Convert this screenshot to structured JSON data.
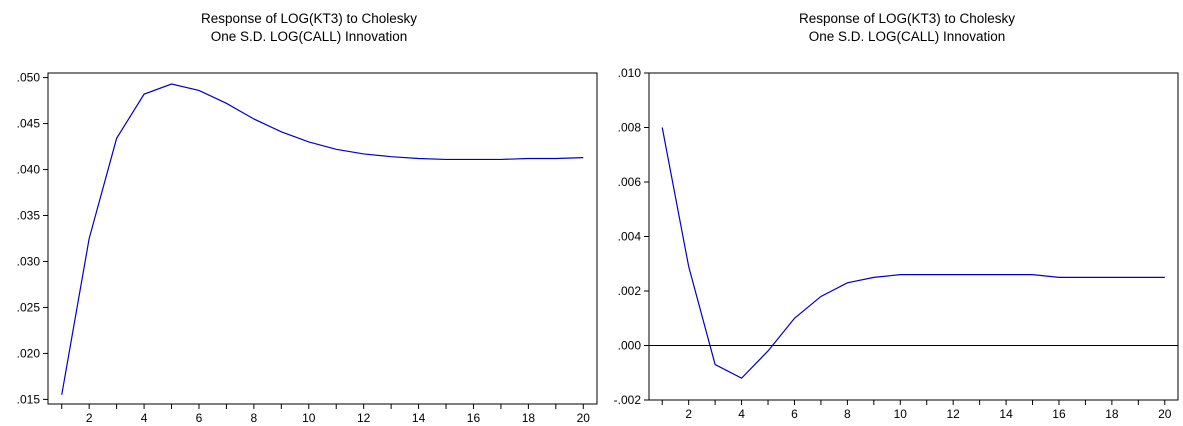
{
  "chart_data": [
    {
      "type": "line",
      "title": "Response of LOG(KT3) to Cholesky",
      "subtitle": "One S.D. LOG(CALL) Innovation",
      "x": [
        1,
        2,
        3,
        4,
        5,
        6,
        7,
        8,
        9,
        10,
        11,
        12,
        13,
        14,
        15,
        16,
        17,
        18,
        19,
        20
      ],
      "series": [
        {
          "values": [
            0.0155,
            0.0325,
            0.0434,
            0.0482,
            0.0493,
            0.0486,
            0.0472,
            0.0455,
            0.0441,
            0.043,
            0.0422,
            0.0417,
            0.0414,
            0.0412,
            0.0411,
            0.0411,
            0.0411,
            0.0412,
            0.0412,
            0.0413
          ],
          "color": "#0000cc"
        }
      ],
      "xlim": [
        0.5,
        20.5
      ],
      "ylim": [
        0.0145,
        0.0505
      ],
      "x_ticks": [
        2,
        4,
        6,
        8,
        10,
        12,
        14,
        16,
        18,
        20
      ],
      "y_ticks": [
        0.015,
        0.02,
        0.025,
        0.03,
        0.035,
        0.04,
        0.045,
        0.05
      ],
      "y_tick_labels": [
        ".015",
        ".020",
        ".025",
        ".030",
        ".035",
        ".040",
        ".045",
        ".050"
      ],
      "zero_line": false,
      "grid": false,
      "xlabel": "",
      "ylabel": ""
    },
    {
      "type": "line",
      "title": "Response of LOG(KT3) to Cholesky",
      "subtitle": "One S.D. LOG(CALL) Innovation",
      "x": [
        1,
        2,
        3,
        4,
        5,
        6,
        7,
        8,
        9,
        10,
        11,
        12,
        13,
        14,
        15,
        16,
        17,
        18,
        19,
        20
      ],
      "series": [
        {
          "values": [
            0.008,
            0.0029,
            -0.0007,
            -0.0012,
            -0.0002,
            0.001,
            0.0018,
            0.0023,
            0.0025,
            0.0026,
            0.0026,
            0.0026,
            0.0026,
            0.0026,
            0.0026,
            0.0025,
            0.0025,
            0.0025,
            0.0025,
            0.0025
          ],
          "color": "#0000cc"
        }
      ],
      "xlim": [
        0.5,
        20.5
      ],
      "ylim": [
        -0.002,
        0.01
      ],
      "x_ticks": [
        2,
        4,
        6,
        8,
        10,
        12,
        14,
        16,
        18,
        20
      ],
      "y_ticks": [
        -0.002,
        0.0,
        0.002,
        0.004,
        0.006,
        0.008,
        0.01
      ],
      "y_tick_labels": [
        "-.002",
        ".000",
        ".002",
        ".004",
        ".006",
        ".008",
        ".010"
      ],
      "zero_line": true,
      "grid": false,
      "xlabel": "",
      "ylabel": ""
    }
  ]
}
